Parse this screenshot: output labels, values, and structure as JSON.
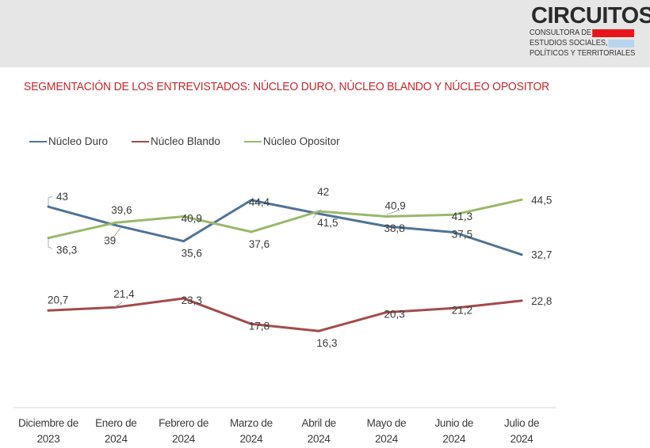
{
  "logo": {
    "title": "CIRCUITOS",
    "lines": [
      "CONSULTORA DE",
      "ESTUDIOS SOCIALES,",
      "POLÍTICOS Y TERRITORIALES"
    ],
    "bar_colors": [
      "#e8161c",
      "#b8d4ee",
      "#f3cb2c"
    ]
  },
  "chart_data": {
    "type": "line",
    "title": "SEGMENTACIÓN DE LOS ENTREVISTADOS: NÚCLEO DURO, NÚCLEO BLANDO Y NÚCLEO OPOSITOR",
    "xlabel": "",
    "ylabel": "",
    "legend_position": "top-left",
    "grid": false,
    "categories": [
      [
        "Diciembre de",
        "2023"
      ],
      [
        "Enero de",
        "2024"
      ],
      [
        "Febrero de",
        "2024"
      ],
      [
        "Marzo de",
        "2024"
      ],
      [
        "Abril de",
        "2024"
      ],
      [
        "Mayo de",
        "2024"
      ],
      [
        "Junio de",
        "2024"
      ],
      [
        "Julio de",
        "2024"
      ]
    ],
    "ylim": [
      0,
      50
    ],
    "series": [
      {
        "name": "Núcleo Duro",
        "color": "#4f7396",
        "values": [
          43,
          39,
          35.6,
          44.4,
          41.5,
          38.8,
          37.5,
          32.7
        ],
        "labels": [
          "43",
          "39",
          "35,6",
          "44,4",
          "41,5",
          "38,8",
          "37,5",
          "32,7"
        ]
      },
      {
        "name": "Núcleo Blando",
        "color": "#a24c4b",
        "values": [
          20.7,
          21.4,
          23.3,
          17.8,
          16.3,
          20.3,
          21.2,
          22.8
        ],
        "labels": [
          "20,7",
          "21,4",
          "23,3",
          "17,8",
          "16,3",
          "20,3",
          "21,2",
          "22,8"
        ]
      },
      {
        "name": "Núcleo Opositor",
        "color": "#9bb86b",
        "values": [
          36.3,
          39.6,
          40.9,
          37.6,
          42,
          40.9,
          41.3,
          44.5
        ],
        "labels": [
          "36,3",
          "39,6",
          "40,9",
          "37,6",
          "42",
          "40,9",
          "41,3",
          "44,5"
        ]
      }
    ]
  }
}
